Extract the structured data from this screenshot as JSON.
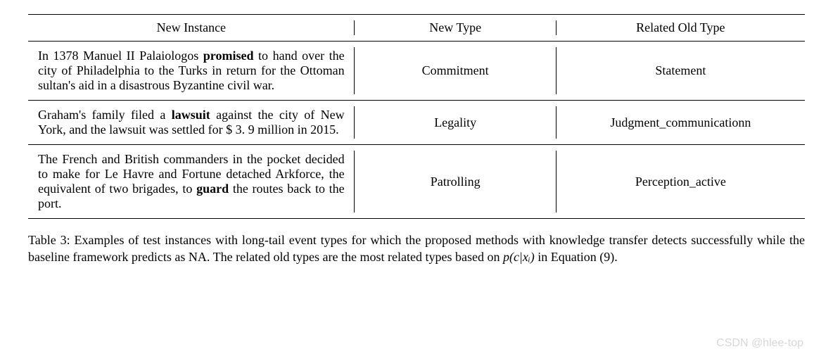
{
  "table": {
    "headers": {
      "instance": "New Instance",
      "new_type": "New Type",
      "old_type": "Related Old Type"
    },
    "rows": [
      {
        "instance_pre": "In 1378 Manuel II Palaiologos ",
        "instance_bold": "promised",
        "instance_post": " to hand over the city of Philadelphia to the Turks in return for the Ottoman sultan's aid in a disastrous Byzantine civil war.",
        "new_type": "Commitment",
        "old_type": "Statement"
      },
      {
        "instance_pre": "Graham's family filed a ",
        "instance_bold": "lawsuit",
        "instance_post": " against the city of New York, and the lawsuit was settled for $ 3. 9 million in 2015.",
        "new_type": "Legality",
        "old_type": "Judgment_communicationn"
      },
      {
        "instance_pre": "The French and British commanders in the pocket decided to make for Le Havre and Fortune detached Arkforce, the equivalent of two brigades, to ",
        "instance_bold": "guard",
        "instance_post": " the routes back to the port.",
        "new_type": "Patrolling",
        "old_type": "Perception_active"
      }
    ]
  },
  "caption": {
    "label": "Table 3:",
    "text_pre": " Examples of test instances with long-tail event types for which the proposed methods with knowledge transfer detects successfully while the baseline framework predicts as ",
    "na": "NA",
    "text_mid": ". The related old types are the most related types based on ",
    "formula": "p(c|xᵢ)",
    "text_post": " in Equation (9)."
  },
  "watermark": "CSDN @hlee-top"
}
